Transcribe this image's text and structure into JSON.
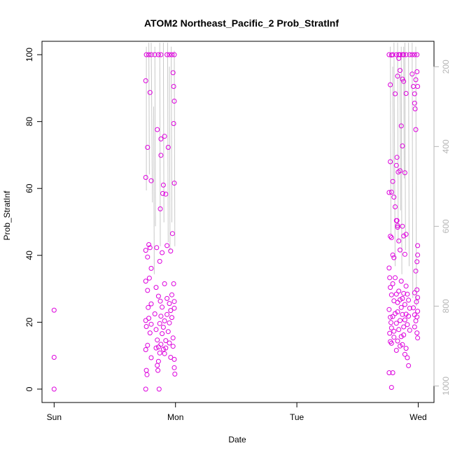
{
  "chart_data": {
    "type": "scatter",
    "title": "ATOM2 Northeast_Pacific_2 Prob_StratInf",
    "xlabel": "Date",
    "ylabel": "Prob_StratInf",
    "x_ticks": [
      "Sun",
      "Mon",
      "Tue",
      "Wed"
    ],
    "xlim": [
      -0.1,
      3.13
    ],
    "ylim": [
      -4,
      104
    ],
    "y_ticks": [
      0,
      20,
      40,
      60,
      80,
      100
    ],
    "right_axis": {
      "ticks": [
        200,
        400,
        600,
        800,
        1000
      ],
      "lim": [
        136.3,
        1041.5
      ],
      "inverted": true,
      "color": "#b5b5b5"
    },
    "marker_color": "#dd00dd",
    "line_color": "#c8c8c8",
    "grid": false,
    "legend": "none",
    "series": [
      {
        "x_units": "days since Sun 00:00",
        "points": [
          [
            0.0,
            23.6
          ],
          [
            0.0,
            9.5
          ],
          [
            0.0,
            0.0
          ],
          [
            0.76,
            100
          ],
          [
            0.78,
            100
          ],
          [
            0.8,
            100
          ],
          [
            0.83,
            100
          ],
          [
            0.86,
            100
          ],
          [
            0.88,
            100
          ],
          [
            0.93,
            100
          ],
          [
            0.95,
            100
          ],
          [
            0.97,
            100
          ],
          [
            0.99,
            100
          ],
          [
            0.755,
            92.2
          ],
          [
            0.77,
            72.3
          ],
          [
            0.79,
            88.7
          ],
          [
            0.8,
            62.3
          ],
          [
            0.85,
            77.6
          ],
          [
            0.88,
            74.8
          ],
          [
            0.91,
            75.6
          ],
          [
            0.94,
            72.3
          ],
          [
            0.985,
            90.5
          ],
          [
            0.99,
            86.1
          ],
          [
            0.98,
            94.6
          ],
          [
            0.985,
            79.4
          ],
          [
            0.99,
            61.6
          ],
          [
            0.755,
            63.3
          ],
          [
            0.88,
            69.9
          ],
          [
            0.9,
            61.0
          ],
          [
            0.92,
            58.3
          ],
          [
            0.875,
            53.9
          ],
          [
            0.895,
            58.5
          ],
          [
            0.975,
            46.5
          ],
          [
            0.755,
            41.5
          ],
          [
            0.77,
            39.5
          ],
          [
            0.78,
            43.2
          ],
          [
            0.79,
            42.3
          ],
          [
            0.8,
            36.1
          ],
          [
            0.845,
            42.3
          ],
          [
            0.87,
            38.2
          ],
          [
            0.89,
            40.8
          ],
          [
            0.93,
            42.9
          ],
          [
            0.96,
            41.3
          ],
          [
            0.755,
            32.3
          ],
          [
            0.77,
            29.5
          ],
          [
            0.785,
            33.2
          ],
          [
            0.8,
            25.5
          ],
          [
            0.84,
            30.4
          ],
          [
            0.86,
            27.8
          ],
          [
            0.875,
            26.3
          ],
          [
            0.89,
            24.5
          ],
          [
            0.91,
            31.5
          ],
          [
            0.93,
            27.1
          ],
          [
            0.95,
            25.6
          ],
          [
            0.97,
            28.2
          ],
          [
            0.99,
            26.2
          ],
          [
            0.985,
            31.5
          ],
          [
            0.755,
            20.5
          ],
          [
            0.76,
            18.7
          ],
          [
            0.775,
            24.4
          ],
          [
            0.78,
            21.2
          ],
          [
            0.79,
            16.8
          ],
          [
            0.8,
            19.4
          ],
          [
            0.83,
            22.5
          ],
          [
            0.84,
            17.8
          ],
          [
            0.85,
            14.7
          ],
          [
            0.86,
            12.6
          ],
          [
            0.87,
            19.6
          ],
          [
            0.88,
            21.8
          ],
          [
            0.89,
            16.6
          ],
          [
            0.9,
            18.5
          ],
          [
            0.91,
            20.4
          ],
          [
            0.92,
            14.5
          ],
          [
            0.93,
            22.3
          ],
          [
            0.94,
            17.2
          ],
          [
            0.95,
            19.8
          ],
          [
            0.96,
            23.5
          ],
          [
            0.97,
            21.4
          ],
          [
            0.98,
            15.3
          ],
          [
            0.99,
            24.2
          ],
          [
            0.755,
            11.8
          ],
          [
            0.76,
            5.6
          ],
          [
            0.765,
            4.3
          ],
          [
            0.77,
            13.1
          ],
          [
            0.8,
            9.4
          ],
          [
            0.84,
            12.3
          ],
          [
            0.85,
            7.1
          ],
          [
            0.855,
            5.6
          ],
          [
            0.86,
            8.3
          ],
          [
            0.87,
            10.8
          ],
          [
            0.88,
            13.4
          ],
          [
            0.9,
            11.9
          ],
          [
            0.91,
            10.6
          ],
          [
            0.92,
            12.3
          ],
          [
            0.95,
            13.8
          ],
          [
            0.96,
            9.5
          ],
          [
            0.98,
            12.8
          ],
          [
            0.99,
            8.9
          ],
          [
            0.99,
            6.4
          ],
          [
            0.995,
            4.5
          ],
          [
            0.755,
            0.0
          ],
          [
            0.865,
            0.0
          ],
          [
            2.76,
            100
          ],
          [
            2.79,
            100
          ],
          [
            2.82,
            100
          ],
          [
            2.85,
            100
          ],
          [
            2.87,
            100
          ],
          [
            2.9,
            100
          ],
          [
            2.93,
            100
          ],
          [
            2.97,
            100
          ],
          [
            2.99,
            100
          ],
          [
            2.78,
            99.9
          ],
          [
            2.84,
            100
          ],
          [
            2.88,
            100
          ],
          [
            2.95,
            100
          ],
          [
            2.77,
            91.0
          ],
          [
            2.83,
            93.6
          ],
          [
            2.84,
            98.9
          ],
          [
            2.85,
            95.3
          ],
          [
            2.87,
            92.7
          ],
          [
            2.9,
            88.4
          ],
          [
            2.95,
            94.2
          ],
          [
            2.96,
            90.5
          ],
          [
            2.97,
            88.3
          ],
          [
            2.98,
            92.5
          ],
          [
            2.99,
            94.9
          ],
          [
            2.995,
            90.5
          ],
          [
            2.97,
            85.5
          ],
          [
            2.975,
            83.8
          ],
          [
            2.98,
            77.6
          ],
          [
            2.88,
            92.0
          ],
          [
            2.81,
            88.3
          ],
          [
            2.86,
            78.7
          ],
          [
            2.77,
            68.0
          ],
          [
            2.79,
            62.1
          ],
          [
            2.8,
            57.4
          ],
          [
            2.82,
            66.9
          ],
          [
            2.825,
            69.3
          ],
          [
            2.835,
            64.9
          ],
          [
            2.85,
            65.3
          ],
          [
            2.87,
            72.7
          ],
          [
            2.89,
            64.7
          ],
          [
            2.76,
            58.8
          ],
          [
            2.78,
            58.9
          ],
          [
            2.81,
            54.5
          ],
          [
            2.83,
            48.9
          ],
          [
            2.77,
            45.7
          ],
          [
            2.78,
            45.3
          ],
          [
            2.79,
            40.1
          ],
          [
            2.8,
            39.3
          ],
          [
            2.82,
            50.4
          ],
          [
            2.825,
            50.4
          ],
          [
            2.83,
            48.4
          ],
          [
            2.84,
            44.3
          ],
          [
            2.85,
            41.6
          ],
          [
            2.87,
            48.7
          ],
          [
            2.88,
            45.8
          ],
          [
            2.9,
            46.3
          ],
          [
            2.89,
            40.3
          ],
          [
            2.995,
            42.9
          ],
          [
            2.99,
            38.1
          ],
          [
            2.98,
            35.3
          ],
          [
            2.995,
            40.1
          ],
          [
            2.76,
            36.2
          ],
          [
            2.765,
            33.3
          ],
          [
            2.77,
            30.4
          ],
          [
            2.78,
            28.2
          ],
          [
            2.79,
            31.5
          ],
          [
            2.8,
            26.4
          ],
          [
            2.81,
            33.3
          ],
          [
            2.82,
            28.4
          ],
          [
            2.83,
            25.9
          ],
          [
            2.84,
            29.3
          ],
          [
            2.85,
            26.7
          ],
          [
            2.86,
            32.3
          ],
          [
            2.87,
            27.1
          ],
          [
            2.88,
            28.6
          ],
          [
            2.89,
            25.3
          ],
          [
            2.9,
            30.8
          ],
          [
            2.91,
            28.4
          ],
          [
            2.92,
            26.6
          ],
          [
            2.93,
            24.2
          ],
          [
            2.99,
            29.7
          ],
          [
            2.995,
            27.4
          ],
          [
            2.97,
            28.8
          ],
          [
            2.985,
            26.1
          ],
          [
            2.76,
            23.8
          ],
          [
            2.77,
            21.5
          ],
          [
            2.775,
            19.9
          ],
          [
            2.78,
            18.3
          ],
          [
            2.79,
            21.7
          ],
          [
            2.8,
            17.3
          ],
          [
            2.81,
            22.6
          ],
          [
            2.82,
            19.7
          ],
          [
            2.83,
            23.1
          ],
          [
            2.84,
            17.8
          ],
          [
            2.85,
            20.5
          ],
          [
            2.86,
            24.4
          ],
          [
            2.87,
            22.3
          ],
          [
            2.88,
            18.6
          ],
          [
            2.89,
            20.7
          ],
          [
            2.9,
            22.4
          ],
          [
            2.91,
            19.3
          ],
          [
            2.92,
            21.8
          ],
          [
            2.93,
            17.6
          ],
          [
            2.96,
            24.3
          ],
          [
            2.97,
            22.2
          ],
          [
            2.98,
            20.4
          ],
          [
            2.99,
            21.6
          ],
          [
            2.995,
            23.3
          ],
          [
            2.765,
            16.7
          ],
          [
            2.77,
            14.2
          ],
          [
            2.78,
            13.7
          ],
          [
            2.8,
            15.5
          ],
          [
            2.82,
            11.6
          ],
          [
            2.83,
            14.4
          ],
          [
            2.85,
            12.9
          ],
          [
            2.86,
            15.7
          ],
          [
            2.87,
            13.3
          ],
          [
            2.88,
            16.2
          ],
          [
            2.89,
            10.4
          ],
          [
            2.9,
            12.2
          ],
          [
            2.91,
            9.4
          ],
          [
            2.92,
            7.0
          ],
          [
            2.99,
            16.8
          ],
          [
            2.995,
            15.3
          ],
          [
            2.97,
            18.6
          ],
          [
            2.76,
            4.9
          ],
          [
            2.79,
            4.9
          ],
          [
            2.78,
            0.5
          ]
        ]
      }
    ],
    "lines_units": "x: days since Sun 00:00, pressure",
    "lines": [
      [
        [
          0.76,
          150
        ],
        [
          0.76,
          510
        ]
      ],
      [
        [
          0.78,
          140
        ],
        [
          0.785,
          470
        ]
      ],
      [
        [
          0.8,
          140
        ],
        [
          0.81,
          540
        ]
      ],
      [
        [
          0.83,
          150
        ],
        [
          0.835,
          600
        ]
      ],
      [
        [
          0.87,
          140
        ],
        [
          0.875,
          650
        ]
      ],
      [
        [
          0.9,
          140
        ],
        [
          0.905,
          590
        ]
      ],
      [
        [
          0.935,
          140
        ],
        [
          0.94,
          640
        ]
      ],
      [
        [
          0.965,
          150
        ],
        [
          0.97,
          590
        ]
      ],
      [
        [
          0.99,
          160
        ],
        [
          0.995,
          650
        ]
      ],
      [
        [
          0.82,
          300
        ],
        [
          0.825,
          720
        ]
      ],
      [
        [
          0.95,
          200
        ],
        [
          0.955,
          660
        ]
      ],
      [
        [
          2.77,
          150
        ],
        [
          2.775,
          620
        ]
      ],
      [
        [
          2.8,
          140
        ],
        [
          2.81,
          700
        ]
      ],
      [
        [
          2.83,
          140
        ],
        [
          2.835,
          640
        ]
      ],
      [
        [
          2.86,
          150
        ],
        [
          2.865,
          720
        ]
      ],
      [
        [
          2.89,
          140
        ],
        [
          2.895,
          660
        ]
      ],
      [
        [
          2.92,
          140
        ],
        [
          2.925,
          700
        ]
      ],
      [
        [
          2.95,
          140
        ],
        [
          2.955,
          780
        ]
      ],
      [
        [
          2.98,
          150
        ],
        [
          2.985,
          800
        ]
      ],
      [
        [
          2.79,
          200
        ],
        [
          2.795,
          520
        ]
      ],
      [
        [
          2.85,
          220
        ],
        [
          2.855,
          560
        ]
      ],
      [
        [
          2.88,
          150
        ],
        [
          2.885,
          480
        ]
      ]
    ]
  }
}
